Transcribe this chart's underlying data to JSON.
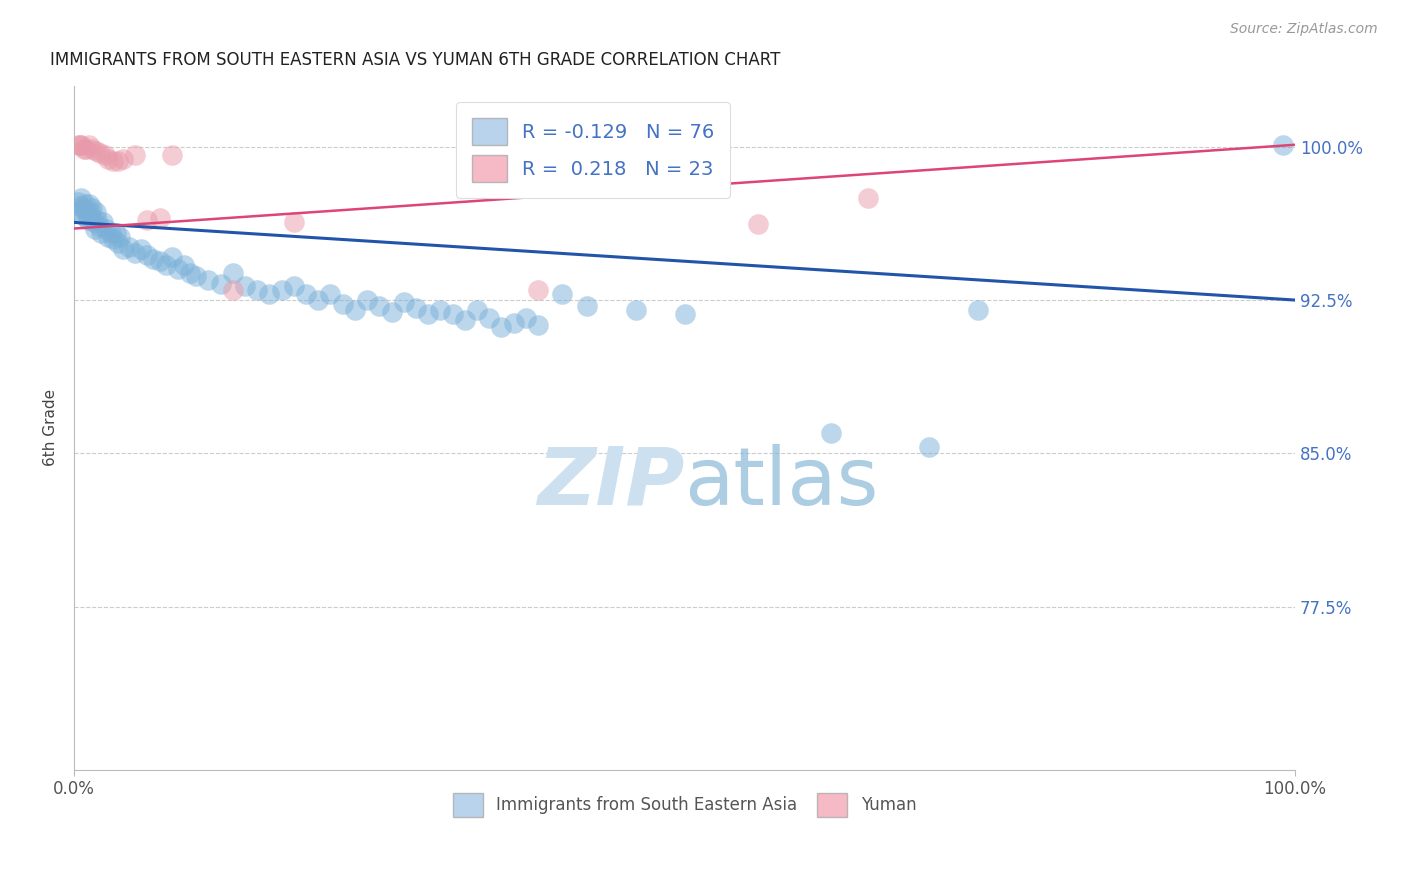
{
  "title": "IMMIGRANTS FROM SOUTH EASTERN ASIA VS YUMAN 6TH GRADE CORRELATION CHART",
  "source": "Source: ZipAtlas.com",
  "ylabel": "6th Grade",
  "y_tick_labels": [
    "77.5%",
    "85.0%",
    "92.5%",
    "100.0%"
  ],
  "y_tick_values": [
    0.775,
    0.85,
    0.925,
    1.0
  ],
  "xlim": [
    0.0,
    1.0
  ],
  "ylim": [
    0.695,
    1.03
  ],
  "legend_blue_label_r": "R = -0.129",
  "legend_blue_label_n": "N = 76",
  "legend_pink_label_r": "R =  0.218",
  "legend_pink_label_n": "N = 23",
  "legend_blue_series": "Immigrants from South Eastern Asia",
  "legend_pink_series": "Yuman",
  "blue_color": "#a8c8e8",
  "pink_color": "#f4a8b8",
  "blue_scatter_color": "#7ab0d8",
  "pink_scatter_color": "#e89aaa",
  "blue_line_color": "#2255aa",
  "pink_line_color": "#dd4477",
  "blue_line_y0": 0.963,
  "blue_line_y1": 0.925,
  "pink_line_y0": 0.96,
  "pink_line_y1": 1.001,
  "blue_x": [
    0.003,
    0.004,
    0.005,
    0.006,
    0.007,
    0.008,
    0.009,
    0.01,
    0.011,
    0.012,
    0.013,
    0.014,
    0.015,
    0.016,
    0.017,
    0.018,
    0.019,
    0.02,
    0.022,
    0.024,
    0.026,
    0.028,
    0.03,
    0.032,
    0.034,
    0.036,
    0.038,
    0.04,
    0.045,
    0.05,
    0.055,
    0.06,
    0.065,
    0.07,
    0.075,
    0.08,
    0.085,
    0.09,
    0.095,
    0.1,
    0.11,
    0.12,
    0.13,
    0.14,
    0.15,
    0.16,
    0.17,
    0.18,
    0.19,
    0.2,
    0.21,
    0.22,
    0.23,
    0.24,
    0.25,
    0.26,
    0.27,
    0.28,
    0.29,
    0.3,
    0.31,
    0.32,
    0.33,
    0.34,
    0.35,
    0.36,
    0.37,
    0.38,
    0.4,
    0.42,
    0.46,
    0.5,
    0.62,
    0.7,
    0.74,
    0.99
  ],
  "blue_y": [
    0.973,
    0.968,
    0.971,
    0.975,
    0.97,
    0.966,
    0.972,
    0.968,
    0.964,
    0.972,
    0.968,
    0.965,
    0.97,
    0.963,
    0.96,
    0.968,
    0.964,
    0.961,
    0.958,
    0.963,
    0.96,
    0.956,
    0.958,
    0.955,
    0.958,
    0.953,
    0.956,
    0.95,
    0.951,
    0.948,
    0.95,
    0.947,
    0.945,
    0.944,
    0.942,
    0.946,
    0.94,
    0.942,
    0.938,
    0.937,
    0.935,
    0.933,
    0.938,
    0.932,
    0.93,
    0.928,
    0.93,
    0.932,
    0.928,
    0.925,
    0.928,
    0.923,
    0.92,
    0.925,
    0.922,
    0.919,
    0.924,
    0.921,
    0.918,
    0.92,
    0.918,
    0.915,
    0.92,
    0.916,
    0.912,
    0.914,
    0.916,
    0.913,
    0.928,
    0.922,
    0.92,
    0.918,
    0.86,
    0.853,
    0.92,
    1.001
  ],
  "pink_x": [
    0.003,
    0.005,
    0.006,
    0.008,
    0.01,
    0.012,
    0.015,
    0.018,
    0.021,
    0.025,
    0.028,
    0.032,
    0.036,
    0.04,
    0.05,
    0.06,
    0.07,
    0.08,
    0.13,
    0.18,
    0.38,
    0.56,
    0.65
  ],
  "pink_y": [
    1.001,
    1.001,
    1.001,
    0.999,
    0.999,
    1.001,
    0.999,
    0.998,
    0.997,
    0.996,
    0.994,
    0.993,
    0.993,
    0.994,
    0.996,
    0.964,
    0.965,
    0.996,
    0.93,
    0.963,
    0.93,
    0.962,
    0.975
  ]
}
